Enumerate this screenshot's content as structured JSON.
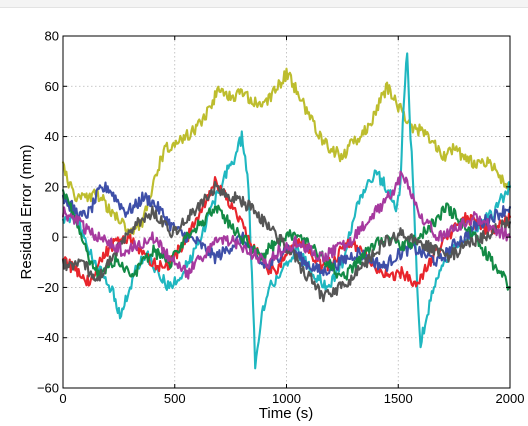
{
  "chart_data": {
    "type": "line",
    "title": "",
    "xlabel": "Time (s)",
    "ylabel": "Residual Error (mm)",
    "xlim": [
      0,
      2000
    ],
    "ylim": [
      -60,
      80
    ],
    "xticks": [
      0,
      500,
      1000,
      1500,
      2000
    ],
    "yticks": [
      -60,
      -40,
      -20,
      0,
      20,
      40,
      60,
      80
    ],
    "grid": true,
    "legend": "none",
    "series": [
      {
        "color": "#BDBD2E",
        "x": [
          0,
          20,
          50,
          100,
          150,
          200,
          250,
          300,
          350,
          400,
          450,
          500,
          550,
          600,
          650,
          700,
          750,
          800,
          850,
          900,
          950,
          1000,
          1050,
          1100,
          1150,
          1200,
          1250,
          1300,
          1350,
          1400,
          1450,
          1500,
          1550,
          1600,
          1650,
          1700,
          1750,
          1800,
          1850,
          1900,
          1950,
          2000
        ],
        "values": [
          30,
          22,
          17,
          15,
          18,
          12,
          8,
          2,
          5,
          20,
          34,
          38,
          40,
          43,
          50,
          60,
          55,
          57,
          54,
          52,
          58,
          65,
          58,
          48,
          40,
          35,
          32,
          38,
          42,
          50,
          60,
          52,
          45,
          42,
          38,
          32,
          35,
          32,
          28,
          30,
          25,
          20
        ]
      },
      {
        "color": "#1FB7C0",
        "x": [
          0,
          25,
          50,
          80,
          110,
          140,
          170,
          200,
          230,
          260,
          290,
          320,
          350,
          380,
          410,
          440,
          470,
          500,
          530,
          560,
          590,
          620,
          650,
          680,
          710,
          740,
          770,
          800,
          830,
          860,
          890,
          920,
          950,
          980,
          1010,
          1040,
          1070,
          1100,
          1130,
          1160,
          1190,
          1220,
          1250,
          1280,
          1310,
          1340,
          1370,
          1400,
          1430,
          1460,
          1490,
          1510,
          1525,
          1540,
          1555,
          1570,
          1585,
          1600,
          1630,
          1660,
          1690,
          1720,
          1750,
          1780,
          1810,
          1840,
          1870,
          1900,
          1930,
          1960,
          2000
        ],
        "values": [
          5,
          8,
          10,
          4,
          -5,
          -10,
          -14,
          -18,
          -24,
          -32,
          -22,
          -14,
          -10,
          -8,
          -12,
          -16,
          -20,
          -18,
          -14,
          -10,
          -5,
          0,
          8,
          15,
          22,
          28,
          32,
          40,
          20,
          -50,
          -30,
          -20,
          -18,
          -14,
          -10,
          -5,
          -8,
          -12,
          -15,
          -18,
          -20,
          -15,
          -10,
          0,
          10,
          18,
          22,
          25,
          22,
          18,
          12,
          20,
          55,
          74,
          40,
          15,
          -20,
          -42,
          -30,
          -20,
          -12,
          -8,
          -4,
          -2,
          0,
          2,
          5,
          8,
          10,
          15,
          20
        ]
      },
      {
        "color": "#E8252C",
        "x": [
          0,
          40,
          80,
          120,
          160,
          200,
          240,
          280,
          320,
          360,
          400,
          440,
          480,
          520,
          560,
          600,
          640,
          680,
          720,
          760,
          800,
          840,
          880,
          920,
          960,
          1000,
          1040,
          1080,
          1120,
          1160,
          1200,
          1240,
          1280,
          1320,
          1360,
          1400,
          1440,
          1480,
          1520,
          1560,
          1600,
          1640,
          1680,
          1720,
          1760,
          1800,
          1840,
          1880,
          1920,
          1960,
          2000
        ],
        "values": [
          -8,
          -12,
          -15,
          -18,
          -10,
          -5,
          -2,
          0,
          -3,
          -6,
          -10,
          -12,
          -10,
          -5,
          0,
          8,
          15,
          22,
          18,
          12,
          5,
          -2,
          -8,
          -14,
          -12,
          -6,
          -2,
          -4,
          -8,
          -12,
          -10,
          -6,
          -2,
          -5,
          -8,
          -12,
          -14,
          -16,
          -14,
          -18,
          -16,
          -10,
          -5,
          0,
          5,
          8,
          6,
          4,
          2,
          5,
          8
        ]
      },
      {
        "color": "#3E4FA8",
        "x": [
          0,
          40,
          80,
          120,
          160,
          200,
          240,
          280,
          320,
          360,
          400,
          440,
          480,
          520,
          560,
          600,
          640,
          680,
          720,
          760,
          800,
          840,
          880,
          920,
          960,
          1000,
          1040,
          1080,
          1120,
          1160,
          1200,
          1240,
          1280,
          1320,
          1360,
          1400,
          1440,
          1480,
          1520,
          1560,
          1600,
          1640,
          1680,
          1720,
          1760,
          1800,
          1840,
          1880,
          1920,
          1960,
          2000
        ],
        "values": [
          15,
          12,
          8,
          10,
          18,
          20,
          15,
          10,
          12,
          16,
          14,
          10,
          5,
          2,
          0,
          -2,
          -5,
          -8,
          -6,
          -3,
          0,
          -5,
          -10,
          -12,
          -8,
          -4,
          -6,
          -10,
          -12,
          -14,
          -12,
          -10,
          -8,
          -6,
          -8,
          -10,
          -12,
          -8,
          -6,
          -4,
          -6,
          -8,
          -10,
          -6,
          -2,
          0,
          4,
          6,
          8,
          10,
          12
        ]
      },
      {
        "color": "#138A45",
        "x": [
          0,
          40,
          80,
          120,
          160,
          200,
          240,
          280,
          320,
          360,
          400,
          440,
          480,
          520,
          560,
          600,
          640,
          680,
          720,
          760,
          800,
          840,
          880,
          920,
          960,
          1000,
          1040,
          1080,
          1120,
          1160,
          1200,
          1240,
          1280,
          1320,
          1360,
          1400,
          1440,
          1480,
          1520,
          1560,
          1600,
          1640,
          1680,
          1720,
          1760,
          1800,
          1840,
          1880,
          1920,
          1960,
          2000
        ],
        "values": [
          20,
          10,
          0,
          -10,
          -15,
          -12,
          -8,
          -12,
          -15,
          -10,
          -5,
          -8,
          -10,
          -5,
          0,
          4,
          8,
          12,
          8,
          4,
          0,
          -4,
          -8,
          -5,
          -2,
          0,
          2,
          -2,
          -5,
          -8,
          -12,
          -16,
          -14,
          -10,
          -6,
          -2,
          0,
          -2,
          -4,
          -2,
          0,
          4,
          8,
          12,
          8,
          4,
          0,
          -5,
          -10,
          -15,
          -20
        ]
      },
      {
        "color": "#555555",
        "x": [
          0,
          40,
          80,
          120,
          160,
          200,
          240,
          280,
          320,
          360,
          400,
          440,
          480,
          520,
          560,
          600,
          640,
          680,
          720,
          760,
          800,
          840,
          880,
          920,
          960,
          1000,
          1040,
          1080,
          1120,
          1160,
          1200,
          1240,
          1280,
          1320,
          1360,
          1400,
          1440,
          1480,
          1520,
          1560,
          1600,
          1640,
          1680,
          1720,
          1760,
          1800,
          1840,
          1880,
          1920,
          1960,
          2000
        ],
        "values": [
          -10,
          -12,
          -8,
          -14,
          -16,
          -10,
          -5,
          0,
          4,
          8,
          10,
          6,
          2,
          4,
          8,
          12,
          16,
          20,
          18,
          16,
          14,
          12,
          8,
          4,
          0,
          -4,
          -8,
          -14,
          -18,
          -24,
          -22,
          -20,
          -18,
          -14,
          -10,
          -6,
          -2,
          0,
          2,
          0,
          -2,
          -4,
          -6,
          -8,
          -6,
          -4,
          -2,
          0,
          2,
          4,
          6
        ]
      },
      {
        "color": "#A6399F",
        "x": [
          0,
          40,
          80,
          120,
          160,
          200,
          240,
          280,
          320,
          360,
          400,
          440,
          480,
          520,
          560,
          600,
          640,
          680,
          720,
          760,
          800,
          840,
          880,
          920,
          960,
          1000,
          1040,
          1080,
          1120,
          1160,
          1200,
          1240,
          1280,
          1320,
          1360,
          1400,
          1440,
          1480,
          1520,
          1560,
          1600,
          1640,
          1680,
          1720,
          1760,
          1800,
          1840,
          1880,
          1920,
          1960,
          2000
        ],
        "values": [
          10,
          8,
          5,
          2,
          0,
          -2,
          -4,
          -6,
          -4,
          -2,
          0,
          -4,
          -8,
          -12,
          -14,
          -10,
          -6,
          -2,
          0,
          -2,
          -4,
          -6,
          -8,
          -10,
          -6,
          -4,
          -2,
          -4,
          -6,
          -8,
          -6,
          -4,
          -2,
          2,
          6,
          10,
          14,
          18,
          26,
          16,
          8,
          4,
          0,
          2,
          4,
          6,
          8,
          6,
          4,
          2,
          0
        ]
      }
    ]
  }
}
